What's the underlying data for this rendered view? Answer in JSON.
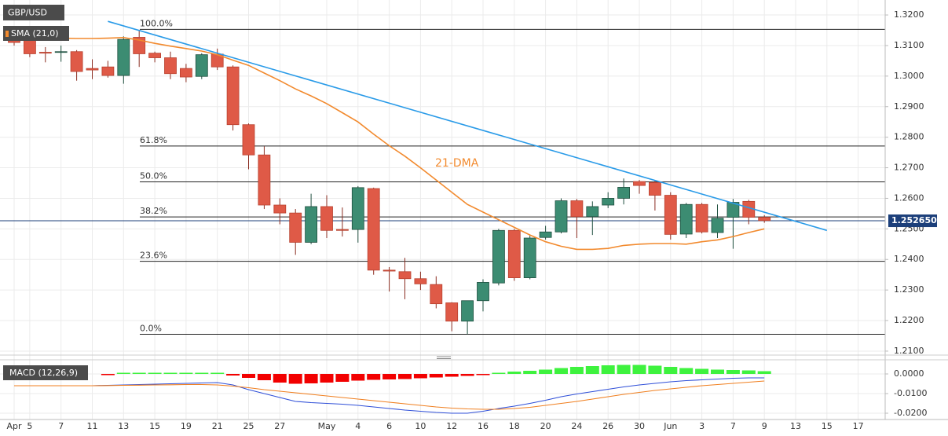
{
  "chart_data": [
    {
      "type": "candlestick",
      "title": "GBP/USD",
      "grid": true,
      "categories": [
        "Apr",
        "5",
        null,
        "7",
        null,
        "11",
        null,
        "13",
        null,
        "15",
        null,
        "19",
        null,
        "21",
        null,
        "25",
        null,
        "27",
        null,
        null,
        "May",
        null,
        "4",
        null,
        "6",
        null,
        "10",
        null,
        "12",
        null,
        "16",
        null,
        "18",
        null,
        "20",
        null,
        "24",
        null,
        "26",
        null,
        "30",
        null,
        "Jun",
        null,
        "3",
        null,
        "7",
        null,
        "9",
        null,
        "13",
        null,
        "15",
        null,
        "17"
      ],
      "up_color": "#3c8c72",
      "down_color": "#df5a47",
      "open": [
        1.3125,
        1.3125,
        1.3078,
        1.3078,
        1.308,
        1.3025,
        1.303,
        1.3002,
        1.3127,
        1.3075,
        1.306,
        1.3025,
        1.2999,
        1.3072,
        1.303,
        1.2841,
        1.2742,
        1.2578,
        1.2552,
        1.2456,
        1.2573,
        1.2498,
        1.2498,
        1.2632,
        1.2365,
        1.236,
        1.2337,
        1.2318,
        1.2258,
        1.2198,
        1.2265,
        1.2323,
        1.2495,
        1.234,
        1.2472,
        1.249,
        1.2592,
        1.254,
        1.2578,
        1.26,
        1.2655,
        1.2652,
        1.261,
        1.2483,
        1.258,
        1.2488,
        1.2538,
        1.259,
        1.2538,
        null,
        null,
        null,
        null,
        null,
        null
      ],
      "high": [
        1.3135,
        1.314,
        1.3095,
        1.31,
        1.3085,
        1.3055,
        1.305,
        1.313,
        1.315,
        1.308,
        1.308,
        1.304,
        1.3075,
        1.309,
        1.3035,
        1.2845,
        1.277,
        1.26,
        1.2565,
        1.2615,
        1.261,
        1.257,
        1.264,
        1.2635,
        1.2375,
        1.2405,
        1.236,
        1.2345,
        1.226,
        1.2265,
        1.2335,
        1.25,
        1.25,
        1.248,
        1.251,
        1.26,
        1.2598,
        1.259,
        1.262,
        1.2665,
        1.266,
        1.266,
        1.262,
        1.2585,
        1.2585,
        1.258,
        1.2598,
        1.2595,
        1.2545,
        null,
        null,
        null,
        null,
        null,
        null
      ],
      "low": [
        1.31,
        1.3062,
        1.3045,
        1.3047,
        1.2985,
        1.299,
        1.2995,
        1.2975,
        1.303,
        1.3045,
        1.299,
        1.298,
        1.299,
        1.302,
        1.2822,
        1.2695,
        1.2565,
        1.2515,
        1.2415,
        1.245,
        1.247,
        1.2475,
        1.2455,
        1.235,
        1.2295,
        1.227,
        1.23,
        1.224,
        1.2165,
        1.2155,
        1.223,
        1.2315,
        1.233,
        1.2335,
        1.2465,
        1.2485,
        1.247,
        1.248,
        1.2568,
        1.258,
        1.2615,
        1.256,
        1.2465,
        1.247,
        1.2485,
        1.247,
        1.2435,
        1.2515,
        1.252,
        null,
        null,
        null,
        null,
        null,
        null
      ],
      "close": [
        1.311,
        1.3073,
        1.3075,
        1.308,
        1.3015,
        1.302,
        1.3002,
        1.312,
        1.3073,
        1.306,
        1.3008,
        1.2997,
        1.307,
        1.303,
        1.2841,
        1.2742,
        1.2578,
        1.2552,
        1.2456,
        1.2573,
        1.2495,
        1.2495,
        1.2635,
        1.2365,
        1.2362,
        1.2337,
        1.232,
        1.2255,
        1.2198,
        1.2265,
        1.2325,
        1.2495,
        1.234,
        1.247,
        1.249,
        1.2592,
        1.254,
        1.2573,
        1.26,
        1.2636,
        1.2642,
        1.261,
        1.2482,
        1.258,
        1.249,
        1.2535,
        1.2587,
        1.2538,
        1.2527,
        null,
        null,
        null,
        null,
        null,
        null
      ],
      "sma": {
        "name": "SMA (21,0)",
        "color": "#f28a2e",
        "values": [
          1.3125,
          1.3125,
          1.3125,
          1.3124,
          1.3123,
          1.3123,
          1.3124,
          1.3126,
          1.3118,
          1.3107,
          1.3098,
          1.309,
          1.3082,
          1.307,
          1.3052,
          1.3035,
          1.301,
          1.2985,
          1.2958,
          1.2935,
          1.291,
          1.288,
          1.285,
          1.281,
          1.2772,
          1.2738,
          1.27,
          1.266,
          1.262,
          1.258,
          1.2555,
          1.253,
          1.2505,
          1.248,
          1.2458,
          1.2443,
          1.2433,
          1.2433,
          1.2436,
          1.2446,
          1.245,
          1.2452,
          1.2452,
          1.245,
          1.2458,
          1.2464,
          1.2475,
          1.2488,
          1.25,
          null,
          null,
          null,
          null,
          null,
          null
        ]
      },
      "annotation": "21-DMA",
      "trendline": {
        "color": "#2a9be8",
        "x": [
          6,
          52
        ],
        "values": [
          1.3179,
          1.2495
        ]
      },
      "fibonacci": {
        "color": "#222222",
        "levels": [
          {
            "label": "100.0%",
            "value": 1.3153
          },
          {
            "label": "61.8%",
            "value": 1.2771
          },
          {
            "label": "50.0%",
            "value": 1.2654
          },
          {
            "label": "38.2%",
            "value": 1.2539
          },
          {
            "label": "23.6%",
            "value": 1.2394
          },
          {
            "label": "0.0%",
            "value": 1.2155
          }
        ]
      },
      "last_price": {
        "value": 1.25265,
        "label": "1.252650",
        "color": "#1c3f7a"
      },
      "ylim": [
        1.2087,
        1.3249
      ],
      "yticks": [
        {
          "value": 1.21,
          "label": "1.2100"
        },
        {
          "value": 1.22,
          "label": "1.2200"
        },
        {
          "value": 1.23,
          "label": "1.2300"
        },
        {
          "value": 1.24,
          "label": "1.2400"
        },
        {
          "value": 1.25,
          "label": "1.2500"
        },
        {
          "value": 1.26,
          "label": "1.2600"
        },
        {
          "value": 1.27,
          "label": "1.2700"
        },
        {
          "value": 1.28,
          "label": "1.2800"
        },
        {
          "value": 1.29,
          "label": "1.2900"
        },
        {
          "value": 1.3,
          "label": "1.3000"
        },
        {
          "value": 1.31,
          "label": "1.3100"
        },
        {
          "value": 1.32,
          "label": "1.3200"
        }
      ]
    },
    {
      "type": "macd",
      "title": "MACD (12,26,9)",
      "grid": true,
      "histogram": {
        "pos_color": "#3ef23e",
        "neg_color": "#f20000",
        "values": [
          null,
          null,
          null,
          null,
          null,
          null,
          -0.0002,
          0.0004,
          0.0004,
          0.0004,
          0.0004,
          0.0004,
          0.0004,
          0.0004,
          -0.0008,
          -0.002,
          -0.0032,
          -0.0044,
          -0.005,
          -0.0048,
          -0.0044,
          -0.004,
          -0.0034,
          -0.003,
          -0.0028,
          -0.0026,
          -0.0022,
          -0.0018,
          -0.0014,
          -0.001,
          -0.0004,
          0.0006,
          0.0012,
          0.0016,
          0.0022,
          0.003,
          0.0036,
          0.004,
          0.0044,
          0.0046,
          0.0046,
          0.0042,
          0.0036,
          0.003,
          0.0026,
          0.0022,
          0.002,
          0.0018,
          0.0014,
          null,
          null,
          null,
          null,
          null,
          null
        ]
      },
      "macd_line": {
        "color": "#2f4fd8",
        "values": [
          -0.006,
          -0.006,
          -0.006,
          -0.006,
          -0.006,
          -0.006,
          -0.0058,
          -0.0056,
          -0.0054,
          -0.0052,
          -0.005,
          -0.0048,
          -0.0046,
          -0.0044,
          -0.0056,
          -0.008,
          -0.01,
          -0.012,
          -0.014,
          -0.0146,
          -0.015,
          -0.0154,
          -0.016,
          -0.0168,
          -0.0176,
          -0.0184,
          -0.019,
          -0.0196,
          -0.02,
          -0.02,
          -0.019,
          -0.0176,
          -0.0164,
          -0.015,
          -0.0134,
          -0.0116,
          -0.0102,
          -0.009,
          -0.0078,
          -0.0066,
          -0.0056,
          -0.0048,
          -0.004,
          -0.0034,
          -0.003,
          -0.0026,
          -0.0022,
          -0.002,
          -0.002,
          null,
          null,
          null,
          null,
          null,
          null
        ]
      },
      "signal_line": {
        "color": "#f07f1f",
        "values": [
          -0.006,
          -0.006,
          -0.006,
          -0.006,
          -0.006,
          -0.006,
          -0.0059,
          -0.0058,
          -0.0057,
          -0.0056,
          -0.0055,
          -0.0054,
          -0.0054,
          -0.0056,
          -0.0062,
          -0.007,
          -0.008,
          -0.0088,
          -0.0096,
          -0.0104,
          -0.0112,
          -0.012,
          -0.0128,
          -0.0136,
          -0.0144,
          -0.0152,
          -0.016,
          -0.0168,
          -0.0174,
          -0.0178,
          -0.018,
          -0.018,
          -0.0176,
          -0.017,
          -0.016,
          -0.015,
          -0.014,
          -0.0128,
          -0.0116,
          -0.0104,
          -0.0094,
          -0.0084,
          -0.0076,
          -0.0068,
          -0.006,
          -0.0054,
          -0.0048,
          -0.0042,
          -0.0036,
          null,
          null,
          null,
          null,
          null,
          null
        ]
      },
      "ylim": [
        -0.0232,
        0.0072
      ],
      "yticks": [
        {
          "value": 0,
          "label": "0.0000"
        },
        {
          "value": -0.01,
          "label": "-0.0100"
        },
        {
          "value": -0.02,
          "label": "-0.0200"
        }
      ]
    }
  ]
}
